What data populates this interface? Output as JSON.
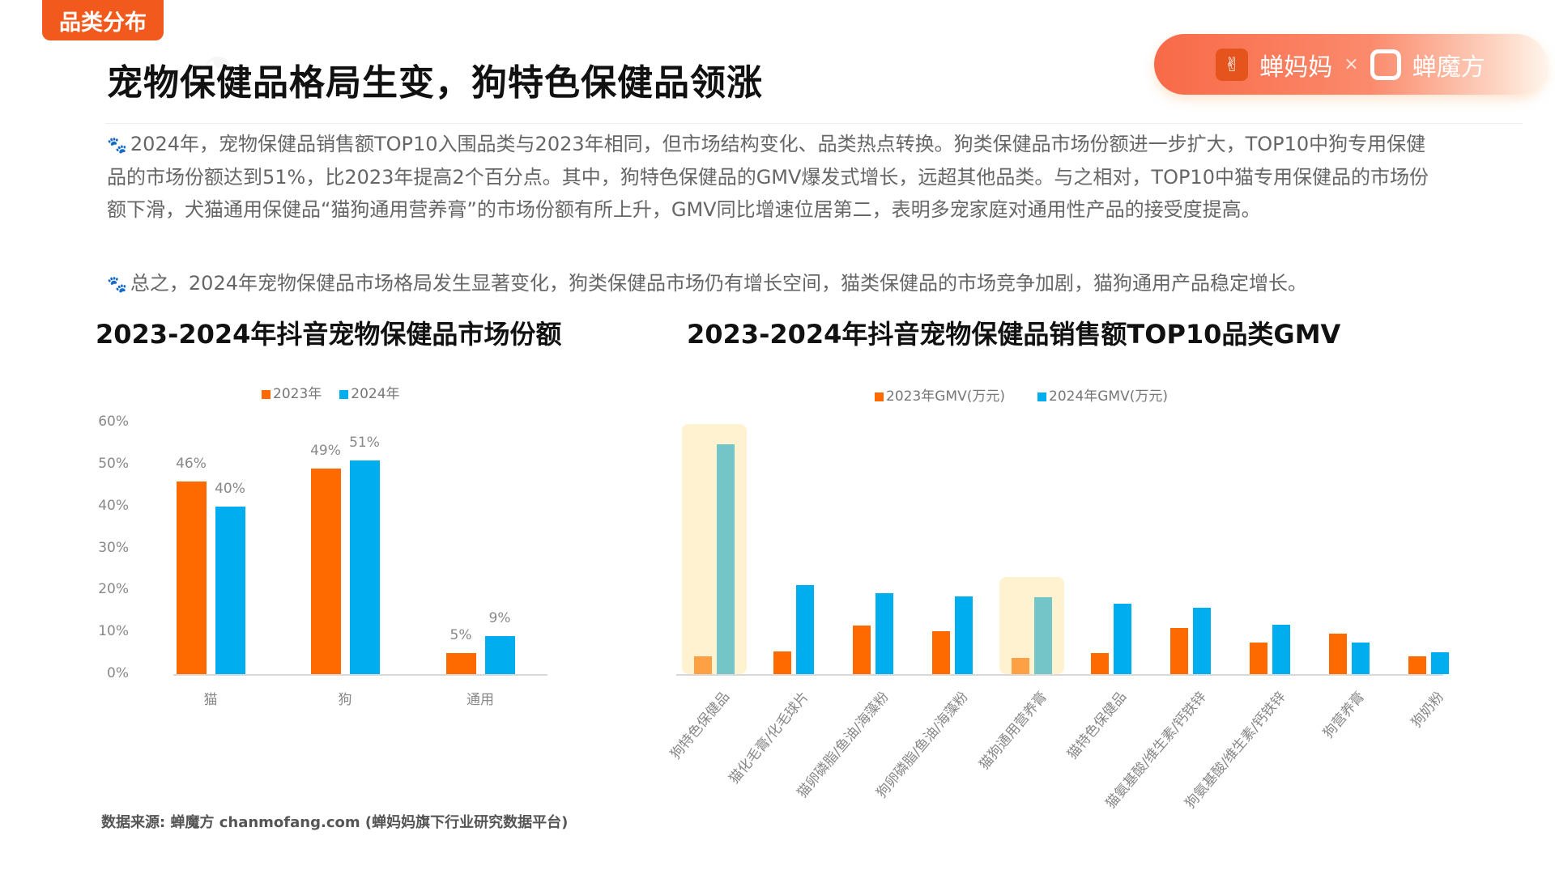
{
  "header": {
    "tag": "品类分布",
    "title": "宠物保健品格局生变，狗特色保健品领涨",
    "logo": {
      "brand1": "蝉妈妈",
      "separator": "×",
      "brand2": "蝉魔方"
    }
  },
  "paragraphs": [
    "2024年，宠物保健品销售额TOP10入围品类与2023年相同，但市场结构变化、品类热点转换。狗类保健品市场份额进一步扩大，TOP10中狗专用保健品的市场份额达到51%，比2023年提高2个百分点。其中，狗特色保健品的GMV爆发式增长，远超其他品类。与之相对，TOP10中猫专用保健品的市场份额下滑，犬猫通用保健品“猫狗通用营养膏”的市场份额有所上升，GMV同比增速位居第二，表明多宠家庭对通用性产品的接受度提高。",
    "总之，2024年宠物保健品市场格局发生显著变化，狗类保健品市场仍有增长空间，猫类保健品的市场竞争加剧，猫狗通用产品稳定增长。"
  ],
  "source": "数据来源: 蝉魔方 chanmofang.com (蝉妈妈旗下行业研究数据平台)",
  "colors": {
    "orange": "#ff6a00",
    "blue": "#00aeef",
    "highlight": "#fff0c8",
    "tag": "#f25a1d"
  },
  "chart_data": [
    {
      "type": "bar",
      "title": "2023-2024年抖音宠物保健品市场份额",
      "categories": [
        "猫",
        "狗",
        "通用"
      ],
      "series": [
        {
          "name": "2023年",
          "values": [
            46,
            49,
            5
          ],
          "labels": [
            "46%",
            "49%",
            "5%"
          ]
        },
        {
          "name": "2024年",
          "values": [
            40,
            51,
            9
          ],
          "labels": [
            "40%",
            "51%",
            "9%"
          ]
        }
      ],
      "yticks": [
        "0%",
        "10%",
        "20%",
        "30%",
        "40%",
        "50%",
        "60%"
      ],
      "ylim": [
        0,
        60
      ],
      "legend": "top",
      "grid": false
    },
    {
      "type": "bar",
      "title": "2023-2024年抖音宠物保健品销售额TOP10品类GMV",
      "categories": [
        "狗特色保健品",
        "猫化毛膏/化毛球片",
        "猫卵磷脂/鱼油/海藻粉",
        "狗卵磷脂/鱼油/海藻粉",
        "猫狗通用营养膏",
        "猫特色保健品",
        "猫氨基酸/维生素/钙铁锌",
        "狗氨基酸/维生素/钙铁锌",
        "狗营养膏",
        "狗奶粉"
      ],
      "series": [
        {
          "name": "2023年GMV(万元)",
          "values": [
            7.9,
            9.9,
            21.2,
            18.6,
            6.9,
            9.3,
            20.2,
            13.8,
            17.5,
            7.9
          ]
        },
        {
          "name": "2024年GMV(万元)",
          "values": [
            100,
            38.8,
            35.3,
            33.8,
            33.5,
            30.8,
            28.8,
            21.4,
            13.9,
            9.5
          ]
        }
      ],
      "value_scale": "relative (no axis printed; tallest bar = 100)",
      "highlighted": [
        "狗特色保健品",
        "猫狗通用营养膏"
      ],
      "ylim": [
        0,
        100
      ],
      "legend": "top",
      "grid": false
    }
  ]
}
